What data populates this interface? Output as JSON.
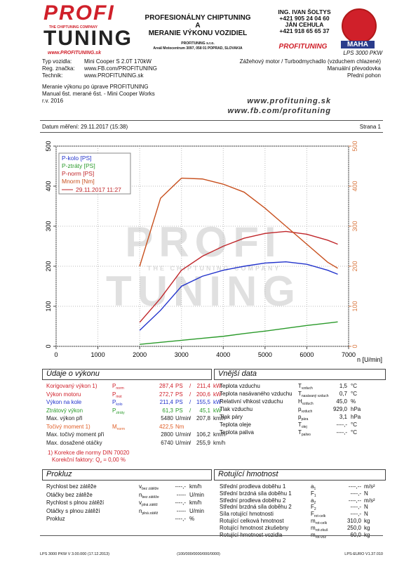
{
  "header": {
    "logo_top": "PROFI",
    "logo_bottom": "TUNING",
    "logo_tagline": "THE CHIPTUNING COMPANY",
    "logo_url": "www.PROFITUNING.sk",
    "title": [
      "PROFESIONÁLNY CHIPTUNING",
      "A",
      "MERANIE VÝKONU VOZIDIEL"
    ],
    "company": "PROFITUNING s.r.o.",
    "address": "Areál Motocentrum 3097, 058 01 POPRAD, SLOVAKIA",
    "contacts": [
      "ING. IVAN ŠOLTYS",
      "+421 905 24 04 60",
      "JÁN CEHULA",
      "+421 918 65 65 37"
    ],
    "brand": "PROFITUNING",
    "maha": "MAHA",
    "model": "LPS 3000 PKW"
  },
  "vehicle": {
    "rows": [
      [
        "Typ vozidla:",
        "Mini Cooper S 2.0T 170kW"
      ],
      [
        "Reg. značka:",
        "www.FB.com/PROFITUNING"
      ],
      [
        "Technik:",
        "www.PROFITUNING.sk"
      ]
    ],
    "specs": [
      "Zážehový motor / Turbodmychadlo (vzduchem chlazené)",
      "Manuální převodovka",
      "Přední pohon"
    ],
    "notes": [
      "Meranie výkonu po úprave PROFITUNING",
      "Manual 6st. merané 6st. - Mini Cooper Works",
      "r.v. 2016"
    ],
    "urls": [
      "www.profituning.sk",
      "www.fb.com/profituning"
    ],
    "date": "Datum měření: 29.11.2017 (15:38)",
    "page": "Strana 1"
  },
  "chart_data": {
    "type": "line",
    "watermark": [
      "PROFI",
      "TUNING",
      "THE CHIPTUNING COMPANY"
    ],
    "x": [
      2000,
      2500,
      3000,
      3500,
      4000,
      4500,
      5000,
      5500,
      6000,
      6500,
      6740
    ],
    "xlim": [
      0,
      7000
    ],
    "xticks": [
      0,
      1000,
      2000,
      3000,
      4000,
      5000,
      6000,
      7000
    ],
    "xlabel": "n [U/min]",
    "ylim": [
      0,
      500
    ],
    "yticks": [
      0,
      100,
      200,
      300,
      400,
      500
    ],
    "y2lim": [
      0,
      500
    ],
    "y2ticks": [
      0,
      100,
      200,
      300,
      400,
      500
    ],
    "y2color": "#d9773f",
    "grid": true,
    "legend_date": "29.11.2017 11:27",
    "series": [
      {
        "name": "P-kolo [PS]",
        "color": "#2233cc",
        "values": [
          40,
          90,
          150,
          175,
          190,
          200,
          208,
          211,
          205,
          190,
          180
        ]
      },
      {
        "name": "P-ztráty [PS]",
        "color": "#2a9a2a",
        "values": [
          5,
          10,
          15,
          20,
          25,
          32,
          38,
          45,
          52,
          58,
          61
        ]
      },
      {
        "name": "P-norm [PS]",
        "color": "#c0262a",
        "values": [
          60,
          120,
          190,
          225,
          250,
          270,
          282,
          287,
          280,
          265,
          255
        ]
      },
      {
        "name": "Mnorm [Nm]",
        "color": "#c8501e",
        "axis": "y2",
        "values": [
          200,
          370,
          420,
          418,
          405,
          385,
          345,
          300,
          255,
          210,
          195
        ]
      }
    ]
  },
  "perf": {
    "title": "Údaje o výkonu",
    "rows": [
      {
        "label": "Korigovaný výkon 1)",
        "sym": "P",
        "sub": "norm",
        "v1": "287,4",
        "u1": "PS",
        "sep": "/",
        "v2": "211,4",
        "u2": "kW",
        "color": "#d0202a"
      },
      {
        "label": "Výkon motoru",
        "sym": "P",
        "sub": "mot",
        "v1": "272,7",
        "u1": "PS",
        "sep": "/",
        "v2": "200,6",
        "u2": "kW",
        "color": "#d0202a"
      },
      {
        "label": "Výkon na kole",
        "sym": "P",
        "sub": "kolo",
        "v1": "211,4",
        "u1": "PS",
        "sep": "/",
        "v2": "155,5",
        "u2": "kW",
        "color": "#2233cc"
      },
      {
        "label": "Ztrátový výkon",
        "sym": "P",
        "sub": "ztráty",
        "v1": "61,3",
        "u1": "PS",
        "sep": "/",
        "v2": "45,1",
        "u2": "kW",
        "color": "#2a9a2a"
      },
      {
        "label": "Max. výkon při",
        "v1": "5480",
        "u1": "U/min",
        "sep": "/",
        "v2": "207,8",
        "u2": "km/h",
        "color": "#222222"
      },
      {
        "label": "Točivý moment 1)",
        "sym": "M",
        "sub": "norm",
        "v1": "422,5",
        "u1": "Nm",
        "color": "#e0602a"
      },
      {
        "label": "Max. točivý moment při",
        "v1": "2800",
        "u1": "U/min",
        "sep": "/",
        "v2": "106,2",
        "u2": "km/h",
        "color": "#222222"
      },
      {
        "label": "Max. dosažené otáčky",
        "v1": "6740",
        "u1": "U/min",
        "sep": "/",
        "v2": "255,9",
        "u2": "km/h",
        "color": "#222222"
      }
    ],
    "note": "1) Korekce dle normy DIN 70020",
    "factor": {
      "text": "Korekční faktory: Q",
      "sub": "v",
      "rest": "= 0,00 %"
    }
  },
  "ext": {
    "title": "Vnější data",
    "rows": [
      {
        "label": "Teplota vzduchu",
        "sym": "T",
        "sub": "vzduch",
        "v1": "1,5",
        "u1": "°C"
      },
      {
        "label": "Teplota nasávaného vzduchu",
        "sym": "T",
        "sub": "nasávaný vzduch",
        "v1": "0,7",
        "u1": "°C"
      },
      {
        "label": "Relativní vlhkost vzduchu",
        "sym": "H",
        "sub": "vzduch",
        "v1": "45,0",
        "u1": "%"
      },
      {
        "label": "Tlak vzduchu",
        "sym": "p",
        "sub": "vzduch",
        "v1": "929,0",
        "u1": "hPa"
      },
      {
        "label": "Tlak páry",
        "sym": "p",
        "sub": "pára",
        "v1": "3,1",
        "u1": "hPa"
      },
      {
        "label": "Teplota oleje",
        "sym": "T",
        "sub": "olej",
        "v1": "----,-",
        "u1": "°C"
      },
      {
        "label": "Teplota paliva",
        "sym": "T",
        "sub": "palivo",
        "v1": "----,-",
        "u1": "°C"
      }
    ]
  },
  "slip": {
    "title": "Prokluz",
    "rows": [
      {
        "label": "Rychlost bez zátěže",
        "sym": "v",
        "sub": "bez zátěže",
        "v1": "----,-",
        "u1": "km/h"
      },
      {
        "label": "Otáčky bez zátěže",
        "sym": "n",
        "sub": "bez zátěže",
        "v1": "-----",
        "u1": "U/min"
      },
      {
        "label": "Rychlost s plnou zátěží",
        "sym": "v",
        "sub": "plná zátěž",
        "v1": "----,-",
        "u1": "km/h"
      },
      {
        "label": "Otáčky s plnou zátěží",
        "sym": "n",
        "sub": "plná zátěž",
        "v1": "-----",
        "u1": "U/min"
      },
      {
        "label": "Prokluz",
        "v1": "----,-",
        "u1": "%"
      }
    ]
  },
  "rot": {
    "title": "Rotující hmotnost",
    "rows": [
      {
        "label": "Střední prodleva doběhu 1",
        "sym": "a",
        "sub": "1",
        "v1": "----,--",
        "u1": "m/s²"
      },
      {
        "label": "Střední brzdná síla doběhu 1",
        "sym": "F",
        "sub": "1",
        "v1": "----,-",
        "u1": "N"
      },
      {
        "label": "Střední prodleva doběhu 2",
        "sym": "a",
        "sub": "2",
        "v1": "----,--",
        "u1": "m/s²"
      },
      {
        "label": "Střední brzdná síla doběhu 2",
        "sym": "F",
        "sub": "2",
        "v1": "----,-",
        "u1": "N"
      },
      {
        "label": "Síla rotující hmotnosti",
        "sym": "F",
        "sub": "rot-celk",
        "v1": "----,-",
        "u1": "N"
      },
      {
        "label": "Rotující celková hmotnost",
        "sym": "m",
        "sub": "rot-celk",
        "v1": "310,0",
        "u1": "kg"
      },
      {
        "label": "Rotující hmotnost zkušebny",
        "sym": "m",
        "sub": "rot-zkuš",
        "v1": "250,0",
        "u1": "kg"
      },
      {
        "label": "Rotující hmotnost vozidla",
        "sym": "m",
        "sub": "rot-voz",
        "v1": "60,0",
        "u1": "kg"
      }
    ]
  },
  "footer": [
    "LPS 3000 PKW V 3.00.000 (17.12.2013)",
    "(100/000/0000/000/0000)",
    "LPS-EURO V1.37.010"
  ]
}
